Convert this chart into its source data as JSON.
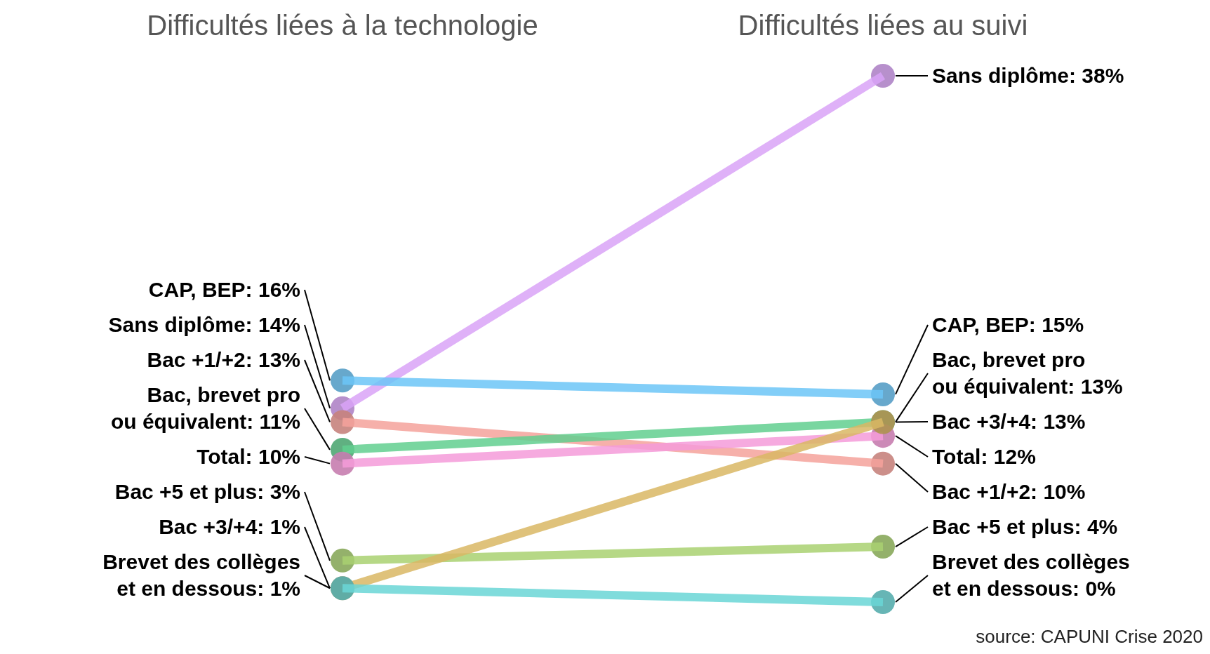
{
  "chart_data": {
    "type": "line",
    "categories": [
      "Difficultés liées à la technologie",
      "Difficultés liées au suivi"
    ],
    "series": [
      {
        "color": "#d9a3f7",
        "values": [
          14,
          38
        ],
        "value_labels": [
          "Sans diplôme: 14%",
          "Sans diplôme: 38%"
        ]
      },
      {
        "color": "#6cc5f7",
        "values": [
          16,
          15
        ],
        "value_labels": [
          "CAP, BEP: 16%",
          "CAP, BEP: 15%"
        ]
      },
      {
        "color": "#f5a29b",
        "values": [
          13,
          10
        ],
        "value_labels": [
          "Bac +1/+2: 13%",
          "Bac +1/+2: 10%"
        ]
      },
      {
        "color": "#62cf8f",
        "values": [
          11,
          13
        ],
        "value_labels": [
          "Bac, brevet pro ou équivalent: 11%",
          "Bac, brevet pro ou équivalent: 13%"
        ]
      },
      {
        "color": "#f59bd9",
        "values": [
          10,
          12
        ],
        "value_labels": [
          "Total: 10%",
          "Total: 12%"
        ]
      },
      {
        "color": "#a9d171",
        "values": [
          3,
          4
        ],
        "value_labels": [
          "Bac +5 et plus: 3%",
          "Bac +5 et plus: 4%"
        ]
      },
      {
        "color": "#d9b764",
        "values": [
          1,
          13
        ],
        "value_labels": [
          "Bac +3/+4: 1%",
          "Bac +3/+4: 13%"
        ]
      },
      {
        "color": "#6ad6d6",
        "values": [
          1,
          0
        ],
        "value_labels": [
          "Brevet des collèges et en dessous: 1%",
          "Brevet des collèges et en dessous: 0%"
        ]
      }
    ],
    "marker": "circle",
    "annotations": [
      "source: CAPUNI Crise 2020"
    ]
  }
}
